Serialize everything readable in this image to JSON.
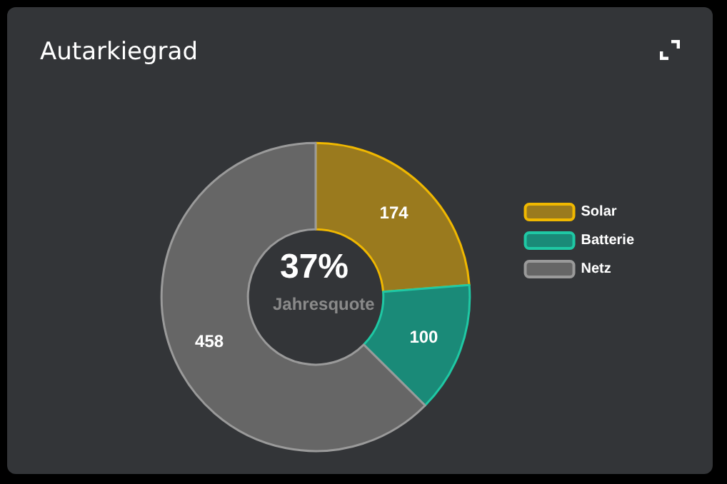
{
  "chart_data": {
    "type": "donut",
    "title": "Autarkiegrad",
    "categories": [
      "Solar",
      "Batterie",
      "Netz"
    ],
    "values": [
      174,
      100,
      458
    ],
    "colors": [
      "#9a7a1e",
      "#1a8a78",
      "#666666"
    ],
    "annotations": [
      "37%",
      "Jahresquote"
    ],
    "data_labels": true,
    "legend": "right"
  }
}
